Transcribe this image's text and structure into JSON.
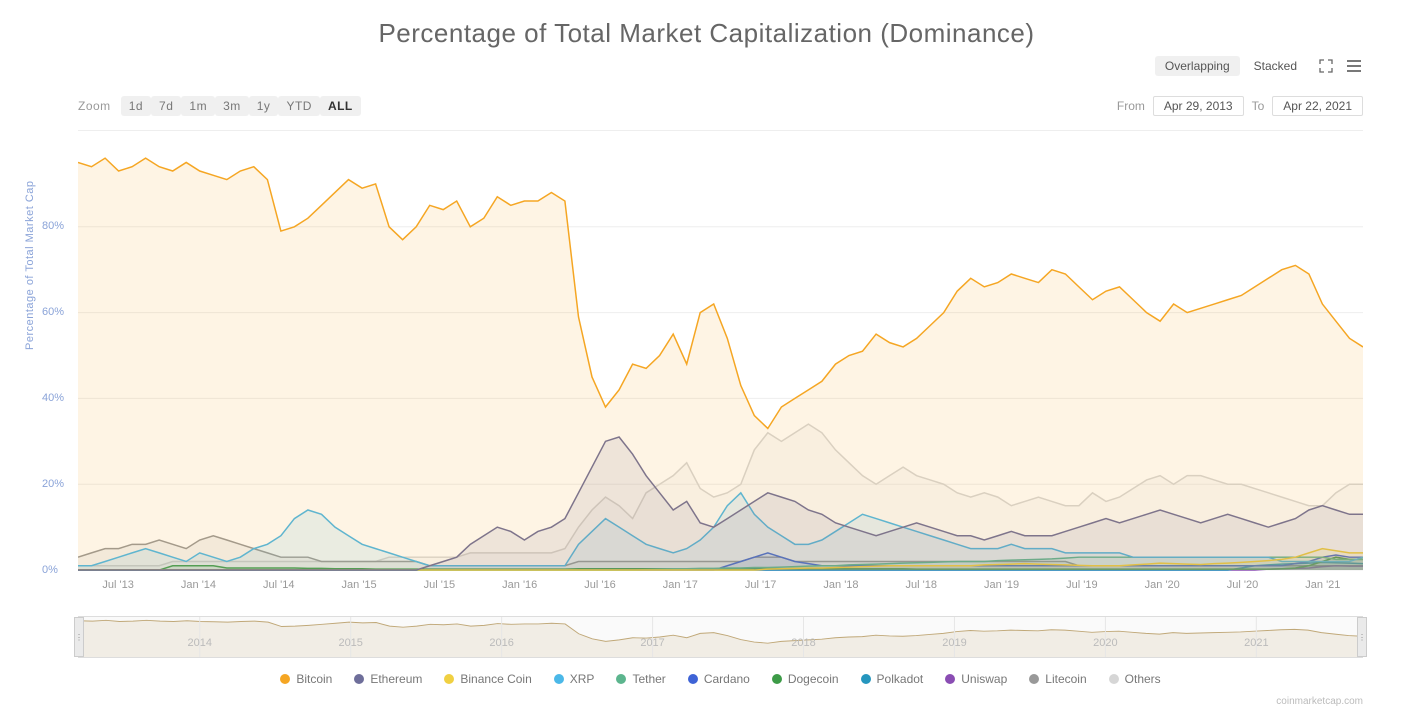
{
  "title": "Percentage of Total Market Capitalization (Dominance)",
  "view_modes": {
    "overlapping": "Overlapping",
    "stacked": "Stacked",
    "active": "overlapping"
  },
  "zoom": {
    "label": "Zoom",
    "options": [
      "1d",
      "7d",
      "1m",
      "3m",
      "1y",
      "YTD",
      "ALL"
    ],
    "active": "ALL"
  },
  "date_range": {
    "from_label": "From",
    "from": "Apr 29, 2013",
    "to_label": "To",
    "to": "Apr 22, 2021"
  },
  "y_axis": {
    "label": "Percentage of Total Market Cap",
    "min": 0,
    "max": 100,
    "ticks": [
      0,
      20,
      40,
      60,
      80
    ],
    "suffix": "%",
    "label_color": "#8aa3d8",
    "grid_color": "#eeeeee"
  },
  "x_axis": {
    "ticks": [
      "Jul '13",
      "Jan '14",
      "Jul '14",
      "Jan '15",
      "Jul '15",
      "Jan '16",
      "Jul '16",
      "Jan '17",
      "Jul '17",
      "Jan '18",
      "Jul '18",
      "Jan '19",
      "Jul '19",
      "Jan '20",
      "Jul '20",
      "Jan '21"
    ]
  },
  "navigator": {
    "years": [
      "2014",
      "2015",
      "2016",
      "2017",
      "2018",
      "2019",
      "2020",
      "2021"
    ]
  },
  "chart": {
    "type": "area-line",
    "background_color": "#ffffff",
    "line_width": 1.5,
    "area_opacity": 0.12
  },
  "series": [
    {
      "name": "Bitcoin",
      "color": "#f5a623",
      "values": [
        95,
        94,
        96,
        93,
        94,
        96,
        94,
        93,
        95,
        93,
        92,
        91,
        93,
        94,
        91,
        79,
        80,
        82,
        85,
        88,
        91,
        89,
        90,
        80,
        77,
        80,
        85,
        84,
        86,
        80,
        82,
        87,
        85,
        86,
        86,
        88,
        86,
        59,
        45,
        38,
        42,
        48,
        47,
        50,
        55,
        48,
        60,
        62,
        54,
        43,
        36,
        33,
        38,
        40,
        42,
        44,
        48,
        50,
        51,
        55,
        53,
        52,
        54,
        57,
        60,
        65,
        68,
        66,
        67,
        69,
        68,
        67,
        70,
        69,
        66,
        63,
        65,
        66,
        63,
        60,
        58,
        62,
        60,
        61,
        62,
        63,
        64,
        66,
        68,
        70,
        71,
        69,
        62,
        58,
        54,
        52
      ]
    },
    {
      "name": "Ethereum",
      "color": "#6e6e9a",
      "values": [
        0,
        0,
        0,
        0,
        0,
        0,
        0,
        0,
        0,
        0,
        0,
        0,
        0,
        0,
        0,
        0,
        0,
        0,
        0,
        0,
        0,
        0,
        0,
        0,
        0,
        0,
        1,
        2,
        3,
        6,
        8,
        10,
        9,
        7,
        9,
        10,
        12,
        18,
        24,
        30,
        31,
        27,
        22,
        18,
        14,
        16,
        11,
        10,
        12,
        14,
        16,
        18,
        17,
        16,
        14,
        13,
        11,
        10,
        9,
        8,
        9,
        10,
        11,
        10,
        9,
        8,
        8,
        7,
        8,
        9,
        8,
        8,
        8,
        9,
        10,
        11,
        12,
        11,
        12,
        13,
        14,
        13,
        12,
        11,
        12,
        13,
        12,
        11,
        10,
        11,
        12,
        14,
        15,
        14,
        13,
        13
      ]
    },
    {
      "name": "Binance Coin",
      "color": "#f0d042",
      "values": [
        0,
        0,
        0,
        0,
        0,
        0,
        0,
        0,
        0,
        0,
        0,
        0,
        0,
        0,
        0,
        0,
        0,
        0,
        0,
        0,
        0,
        0,
        0,
        0,
        0,
        0,
        0,
        0,
        0,
        0,
        0,
        0,
        0,
        0,
        0,
        0,
        0,
        0,
        0,
        0,
        0,
        0,
        0,
        0,
        0,
        0,
        0,
        0,
        0,
        0,
        0,
        0.2,
        0.3,
        0.4,
        0.5,
        0.5,
        0.6,
        0.7,
        0.8,
        0.9,
        1,
        1,
        1,
        1,
        1,
        1,
        1,
        1.2,
        1.3,
        1.4,
        1.5,
        1.4,
        1.3,
        1.2,
        1.1,
        1,
        1,
        1,
        1.2,
        1.4,
        1.6,
        1.5,
        1.4,
        1.3,
        1.5,
        1.6,
        1.8,
        2,
        2.2,
        2.5,
        3,
        4,
        5,
        4.5,
        4,
        4
      ]
    },
    {
      "name": "XRP",
      "color": "#4bb8e8",
      "values": [
        1,
        1,
        2,
        3,
        4,
        5,
        4,
        3,
        2,
        4,
        3,
        2,
        3,
        5,
        6,
        8,
        12,
        14,
        13,
        10,
        8,
        6,
        5,
        4,
        3,
        2,
        1,
        1,
        1,
        1,
        1,
        1,
        1,
        1,
        1,
        1,
        1,
        6,
        9,
        12,
        10,
        8,
        6,
        5,
        4,
        5,
        7,
        10,
        15,
        18,
        13,
        10,
        8,
        6,
        6,
        7,
        9,
        11,
        13,
        12,
        11,
        10,
        9,
        8,
        7,
        6,
        5,
        5,
        5,
        6,
        5,
        5,
        5,
        4,
        4,
        4,
        4,
        4,
        3,
        3,
        3,
        3,
        3,
        3,
        3,
        3,
        3,
        3,
        3,
        2,
        2,
        2,
        2,
        2,
        2,
        3
      ]
    },
    {
      "name": "Tether",
      "color": "#5cb58e",
      "values": [
        0,
        0,
        0,
        0,
        0,
        0,
        0,
        0,
        0,
        0,
        0,
        0,
        0,
        0,
        0,
        0,
        0,
        0,
        0,
        0,
        0,
        0,
        0,
        0,
        0,
        0,
        0,
        0,
        0,
        0,
        0,
        0,
        0,
        0,
        0,
        0,
        0,
        0,
        0,
        0,
        0,
        0,
        0.1,
        0.2,
        0.3,
        0.3,
        0.4,
        0.4,
        0.5,
        0.5,
        0.6,
        0.6,
        0.7,
        0.8,
        0.9,
        1,
        1,
        1.2,
        1.3,
        1.4,
        1.5,
        1.6,
        1.7,
        1.8,
        1.9,
        2,
        2,
        2,
        2.2,
        2.3,
        2.4,
        2.5,
        2.6,
        2.8,
        3,
        3,
        3,
        3,
        3,
        3,
        3,
        3,
        3,
        3,
        3,
        3,
        3,
        3,
        3,
        3,
        3,
        3,
        3,
        2.5,
        2.5,
        2.5
      ]
    },
    {
      "name": "Cardano",
      "color": "#3e63d6",
      "values": [
        0,
        0,
        0,
        0,
        0,
        0,
        0,
        0,
        0,
        0,
        0,
        0,
        0,
        0,
        0,
        0,
        0,
        0,
        0,
        0,
        0,
        0,
        0,
        0,
        0,
        0,
        0,
        0,
        0,
        0,
        0,
        0,
        0,
        0,
        0,
        0,
        0,
        0,
        0,
        0,
        0,
        0,
        0,
        0,
        0,
        0,
        0,
        0,
        1,
        2,
        3,
        4,
        3,
        2,
        1.5,
        1,
        1,
        1,
        1,
        1,
        1,
        1,
        1,
        1,
        1,
        1,
        1,
        1,
        1,
        1,
        1,
        1,
        1,
        1,
        1,
        1,
        1,
        1,
        1,
        1,
        1,
        1,
        1,
        1,
        1,
        1,
        1,
        1,
        1,
        1,
        1.5,
        2,
        3,
        3.5,
        3,
        3
      ]
    },
    {
      "name": "Dogecoin",
      "color": "#3d9b47",
      "values": [
        0,
        0,
        0,
        0,
        0,
        0,
        0,
        1,
        1,
        1,
        1,
        0.5,
        0.5,
        0.5,
        0.5,
        0.5,
        0.5,
        0.4,
        0.4,
        0.3,
        0.3,
        0.3,
        0.2,
        0.2,
        0.2,
        0.2,
        0.2,
        0.2,
        0.2,
        0.2,
        0.2,
        0.2,
        0.2,
        0.2,
        0.2,
        0.2,
        0.2,
        0.3,
        0.3,
        0.3,
        0.3,
        0.3,
        0.3,
        0.3,
        0.3,
        0.3,
        0.3,
        0.3,
        0.3,
        0.3,
        0.3,
        0.3,
        0.3,
        0.3,
        0.3,
        0.3,
        0.3,
        0.3,
        0.3,
        0.3,
        0.3,
        0.3,
        0.2,
        0.2,
        0.2,
        0.2,
        0.2,
        0.2,
        0.2,
        0.2,
        0.2,
        0.2,
        0.2,
        0.2,
        0.2,
        0.2,
        0.2,
        0.2,
        0.2,
        0.2,
        0.2,
        0.2,
        0.2,
        0.2,
        0.2,
        0.2,
        0.2,
        0.2,
        0.2,
        0.3,
        0.5,
        1,
        2,
        3,
        2.5,
        2.5
      ]
    },
    {
      "name": "Polkadot",
      "color": "#2596be",
      "values": [
        0,
        0,
        0,
        0,
        0,
        0,
        0,
        0,
        0,
        0,
        0,
        0,
        0,
        0,
        0,
        0,
        0,
        0,
        0,
        0,
        0,
        0,
        0,
        0,
        0,
        0,
        0,
        0,
        0,
        0,
        0,
        0,
        0,
        0,
        0,
        0,
        0,
        0,
        0,
        0,
        0,
        0,
        0,
        0,
        0,
        0,
        0,
        0,
        0,
        0,
        0,
        0,
        0,
        0,
        0,
        0,
        0,
        0,
        0,
        0,
        0,
        0,
        0,
        0,
        0,
        0,
        0,
        0,
        0,
        0,
        0,
        0,
        0,
        0,
        0,
        0,
        0,
        0,
        0,
        0,
        0,
        0,
        0,
        0,
        0,
        0,
        0.5,
        1,
        1.2,
        1.4,
        1.5,
        1.6,
        1.8,
        1.7,
        1.6,
        1.5
      ]
    },
    {
      "name": "Uniswap",
      "color": "#8a4db3",
      "values": [
        0,
        0,
        0,
        0,
        0,
        0,
        0,
        0,
        0,
        0,
        0,
        0,
        0,
        0,
        0,
        0,
        0,
        0,
        0,
        0,
        0,
        0,
        0,
        0,
        0,
        0,
        0,
        0,
        0,
        0,
        0,
        0,
        0,
        0,
        0,
        0,
        0,
        0,
        0,
        0,
        0,
        0,
        0,
        0,
        0,
        0,
        0,
        0,
        0,
        0,
        0,
        0,
        0,
        0,
        0,
        0,
        0,
        0,
        0,
        0,
        0,
        0,
        0,
        0,
        0,
        0,
        0,
        0,
        0,
        0,
        0,
        0,
        0,
        0,
        0,
        0,
        0,
        0,
        0,
        0,
        0,
        0,
        0,
        0,
        0,
        0,
        0,
        0,
        0.2,
        0.3,
        0.4,
        0.5,
        0.8,
        1,
        0.9,
        0.9
      ]
    },
    {
      "name": "Litecoin",
      "color": "#999999",
      "values": [
        3,
        4,
        5,
        5,
        6,
        6,
        7,
        6,
        5,
        7,
        8,
        7,
        6,
        5,
        4,
        3,
        3,
        3,
        2,
        2,
        2,
        2,
        2,
        2,
        2,
        2,
        1,
        1,
        1,
        1,
        1,
        1,
        1,
        1,
        1,
        1,
        1,
        2,
        2,
        2,
        2,
        2,
        2,
        2,
        2,
        2,
        2,
        2,
        2,
        2,
        3,
        3,
        3,
        2,
        2,
        2,
        2,
        2,
        2,
        2,
        2,
        2,
        2,
        2,
        2,
        2,
        2,
        2,
        2,
        2,
        2,
        2,
        2,
        2,
        1,
        1,
        1,
        1,
        1,
        1,
        1,
        1,
        1,
        1,
        1,
        1,
        1,
        1,
        1,
        1,
        1,
        1,
        1,
        1,
        1,
        1
      ]
    },
    {
      "name": "Others",
      "color": "#d6d6d6",
      "values": [
        1,
        1,
        1,
        1,
        1,
        1,
        1,
        2,
        2,
        2,
        2,
        2,
        2,
        2,
        2,
        2,
        2,
        2,
        2,
        2,
        2,
        2,
        2,
        3,
        3,
        3,
        3,
        3,
        3,
        4,
        4,
        4,
        4,
        4,
        4,
        4,
        5,
        10,
        14,
        17,
        15,
        12,
        18,
        20,
        22,
        25,
        19,
        17,
        18,
        20,
        28,
        32,
        30,
        32,
        34,
        32,
        28,
        25,
        22,
        20,
        22,
        24,
        22,
        21,
        20,
        18,
        17,
        18,
        17,
        15,
        16,
        17,
        16,
        15,
        15,
        18,
        16,
        17,
        19,
        21,
        22,
        20,
        22,
        22,
        21,
        20,
        20,
        19,
        18,
        17,
        16,
        15,
        15,
        18,
        20,
        20
      ]
    }
  ],
  "legend_items": [
    {
      "label": "Bitcoin",
      "color": "#f5a623"
    },
    {
      "label": "Ethereum",
      "color": "#6e6e9a"
    },
    {
      "label": "Binance Coin",
      "color": "#f0d042"
    },
    {
      "label": "XRP",
      "color": "#4bb8e8"
    },
    {
      "label": "Tether",
      "color": "#5cb58e"
    },
    {
      "label": "Cardano",
      "color": "#3e63d6"
    },
    {
      "label": "Dogecoin",
      "color": "#3d9b47"
    },
    {
      "label": "Polkadot",
      "color": "#2596be"
    },
    {
      "label": "Uniswap",
      "color": "#8a4db3"
    },
    {
      "label": "Litecoin",
      "color": "#999999"
    },
    {
      "label": "Others",
      "color": "#d6d6d6"
    }
  ],
  "attribution": "coinmarketcap.com"
}
